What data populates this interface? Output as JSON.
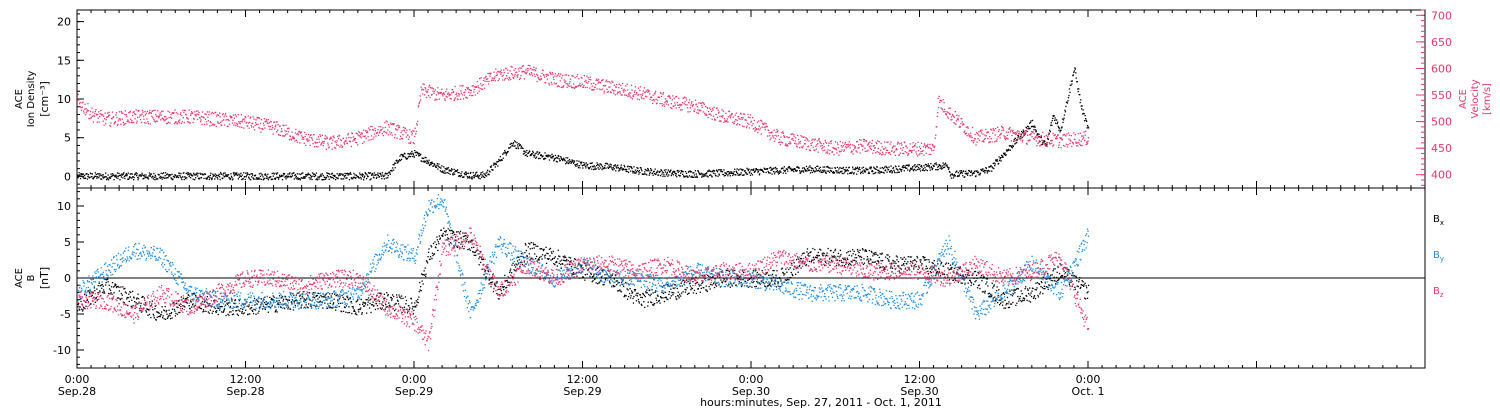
{
  "colors": {
    "black": "#000000",
    "blue": "#1f8ce0",
    "pink": "#e6386a",
    "axis": "#000000"
  },
  "chart_data": {
    "type": "scatter",
    "x_range_hours": [
      0,
      96
    ],
    "xlabel": "hours:minutes, Sep. 27, 2011 - Oct.  1, 2011",
    "x_ticks": [
      {
        "hour": 0,
        "time": "0:00",
        "date": "Sep.28"
      },
      {
        "hour": 12,
        "time": "12:00",
        "date": "Sep.28"
      },
      {
        "hour": 24,
        "time": "0:00",
        "date": "Sep.29"
      },
      {
        "hour": 36,
        "time": "12:00",
        "date": "Sep.29"
      },
      {
        "hour": 48,
        "time": "0:00",
        "date": "Sep.30"
      },
      {
        "hour": 60,
        "time": "12:00",
        "date": "Sep.30"
      },
      {
        "hour": 72,
        "time": "0:00",
        "date": "Oct. 1"
      },
      {
        "hour": 84,
        "time": "",
        "date": ""
      }
    ],
    "panels": [
      {
        "id": "plasma",
        "left_axis": {
          "label_lines": [
            "ACE",
            "Ion Density"
          ],
          "unit": "[cm⁻³]",
          "ylim": [
            -1.5,
            21.5
          ],
          "ticks": [
            0,
            5,
            10,
            15,
            20
          ],
          "tick_labels": [
            "0",
            "5",
            "10",
            "15",
            "20"
          ]
        },
        "right_axis": {
          "label_lines": [
            "ACE",
            "Velocity"
          ],
          "unit": "[km/s]",
          "ylim": [
            375,
            710
          ],
          "ticks": [
            400,
            450,
            500,
            550,
            600,
            650,
            700
          ],
          "tick_labels": [
            "400",
            "450",
            "500",
            "550",
            "600",
            "650",
            "700"
          ]
        },
        "series": [
          {
            "axis": "left",
            "color": "#000000",
            "x": [
              0,
              4,
              8,
              12,
              16,
              20,
              22,
              23,
              24,
              25,
              26,
              28,
              29,
              30,
              31,
              32,
              34,
              36,
              38,
              40,
              42,
              44,
              46,
              48,
              52,
              56,
              60,
              62,
              62.2,
              64,
              65,
              66,
              67,
              68,
              68.5,
              69,
              69.5,
              70,
              70.5,
              71,
              71.5,
              72
            ],
            "y": [
              0.1,
              0.1,
              0.1,
              0.1,
              0.1,
              0.1,
              0.1,
              2.5,
              3,
              2,
              1,
              0.2,
              0.2,
              2,
              4.5,
              3,
              2.5,
              1.5,
              1.3,
              0.8,
              0.5,
              0.4,
              0.5,
              0.7,
              1,
              0.8,
              1.2,
              1.5,
              0.3,
              0.5,
              1,
              3,
              5,
              7,
              5,
              4,
              8,
              6,
              10,
              14,
              9,
              6
            ]
          },
          {
            "axis": "right",
            "color": "#e6386a",
            "x": [
              0,
              1,
              2,
              4,
              6,
              8,
              10,
              12,
              14,
              16,
              18,
              20,
              22,
              24,
              24.5,
              26,
              28,
              30,
              32,
              34,
              36,
              38,
              40,
              42,
              44,
              46,
              48,
              50,
              52,
              54,
              56,
              58,
              60,
              61,
              61.3,
              62,
              64,
              66,
              68,
              70,
              72
            ],
            "y": [
              540,
              515,
              505,
              510,
              510,
              510,
              505,
              500,
              490,
              470,
              460,
              470,
              490,
              470,
              560,
              550,
              560,
              590,
              595,
              580,
              575,
              565,
              555,
              540,
              530,
              510,
              500,
              470,
              460,
              450,
              455,
              450,
              450,
              450,
              540,
              520,
              470,
              480,
              470,
              465,
              470
            ]
          }
        ]
      },
      {
        "id": "field",
        "left_axis": {
          "label_lines": [
            "ACE",
            "B"
          ],
          "unit": "[nT]",
          "ylim": [
            -12.5,
            12.5
          ],
          "ticks": [
            -10,
            -5,
            0,
            5,
            10
          ],
          "tick_labels": [
            "-10",
            "-5",
            "0",
            "5",
            "10"
          ]
        },
        "zero_line": true,
        "legend_labels": [
          {
            "text": "Bx",
            "main": "B",
            "sub": "x",
            "color": "#000000"
          },
          {
            "text": "By",
            "main": "B",
            "sub": "y",
            "color": "#1f8ce0"
          },
          {
            "text": "Bz",
            "main": "B",
            "sub": "z",
            "color": "#e6386a"
          }
        ],
        "series": [
          {
            "name": "Bx",
            "color": "#000000",
            "x": [
              0,
              2,
              4,
              6,
              8,
              10,
              12,
              14,
              16,
              18,
              20,
              22,
              24,
              25,
              26,
              28,
              30,
              32,
              34,
              36,
              38,
              40,
              42,
              44,
              46,
              48,
              50,
              52,
              54,
              56,
              58,
              60,
              62,
              64,
              66,
              68,
              70,
              72
            ],
            "y": [
              -4,
              -1,
              -3,
              -5,
              -3,
              -4,
              -4,
              -3.5,
              -3,
              -3,
              -4,
              -3,
              -4,
              3,
              6,
              5,
              -2,
              4,
              3,
              1,
              0,
              -3,
              -2,
              -1,
              0,
              0,
              0,
              3,
              3,
              3,
              2,
              2,
              1,
              0,
              -3,
              -2,
              1,
              -2
            ]
          },
          {
            "name": "By",
            "color": "#1f8ce0",
            "x": [
              0,
              2,
              4,
              6,
              8,
              10,
              12,
              14,
              16,
              18,
              20,
              22,
              24,
              25,
              26,
              28,
              30,
              32,
              34,
              36,
              38,
              40,
              42,
              44,
              46,
              48,
              50,
              52,
              54,
              56,
              58,
              60,
              62,
              64,
              66,
              68,
              70,
              72
            ],
            "y": [
              -2,
              1,
              4,
              3,
              -2,
              -3,
              -3,
              -3,
              -3,
              -3,
              -2,
              5,
              3,
              10,
              11,
              -5,
              5,
              2,
              0,
              2,
              0,
              0,
              -1,
              1,
              0,
              0,
              -1,
              -2,
              -2,
              -2,
              -3,
              -3,
              5,
              -5,
              -2,
              2,
              -2,
              6
            ]
          },
          {
            "name": "Bz",
            "color": "#e6386a",
            "x": [
              0,
              2,
              4,
              6,
              8,
              10,
              12,
              14,
              16,
              18,
              20,
              22,
              24,
              25,
              26,
              28,
              30,
              32,
              34,
              36,
              38,
              40,
              42,
              44,
              46,
              48,
              50,
              52,
              54,
              56,
              58,
              60,
              62,
              64,
              66,
              68,
              70,
              72
            ],
            "y": [
              -3,
              -3,
              -5,
              -2,
              -4,
              -2,
              0,
              0,
              -1,
              0,
              0,
              -4,
              -6,
              -9,
              4,
              6,
              -2,
              2,
              0,
              2,
              2,
              1,
              2,
              0,
              1,
              1,
              3,
              2,
              2,
              1,
              1,
              1,
              0,
              2,
              0,
              1,
              3,
              -7
            ]
          }
        ]
      }
    ]
  }
}
